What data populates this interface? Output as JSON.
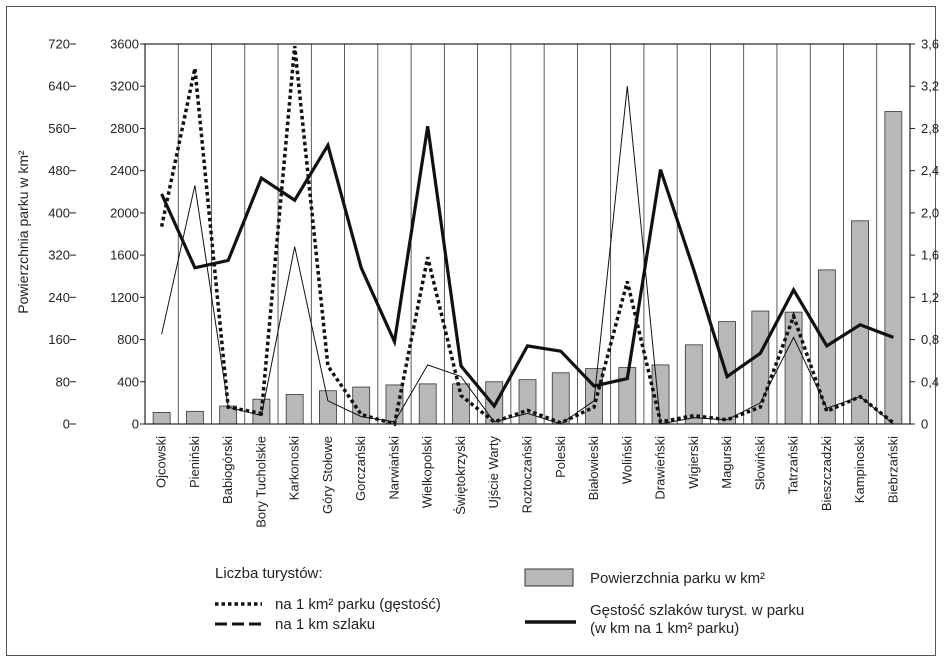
{
  "chart_data": {
    "type": "bar",
    "categories": [
      "Ojcowski",
      "Pieniński",
      "Babiogórski",
      "Bory Tucholskie",
      "Karkonoski",
      "Góry Stołowe",
      "Gorczański",
      "Narwiański",
      "Wielkopolski",
      "Świętokrzyski",
      "Ujście Warty",
      "Roztoczański",
      "Poleski",
      "Białowieski",
      "Woliński",
      "Drawieński",
      "Wigierski",
      "Magurski",
      "Słowiński",
      "Tatrzański",
      "Bieszczadzki",
      "Kampinoski",
      "Biebrzański"
    ],
    "ylabel": "Powierzchnia parku w km²",
    "y_left_outer_ticks": [
      "0",
      "80",
      "160",
      "240",
      "320",
      "400",
      "480",
      "560",
      "640",
      "720"
    ],
    "y_left_inner_ticks": [
      "0",
      "400",
      "800",
      "1200",
      "1600",
      "2000",
      "2400",
      "2800",
      "3200",
      "3600"
    ],
    "y_right_ticks": [
      "0",
      "0,4",
      "0,8",
      "1,2",
      "1,6",
      "2,0",
      "2,4",
      "2,8",
      "3,2",
      "3,6"
    ],
    "ylim_area": [
      0,
      720
    ],
    "ylim_tourists": [
      0,
      3600
    ],
    "ylim_density": [
      0,
      3.6
    ],
    "series": [
      {
        "name": "Powierzchnia parku w km²",
        "kind": "bar",
        "axis": "area",
        "values": [
          22,
          24,
          34,
          47,
          56,
          63,
          70,
          74,
          76,
          76,
          80,
          84,
          97,
          105,
          107,
          112,
          150,
          194,
          214,
          212,
          292,
          385,
          592
        ]
      },
      {
        "name": "na 1 km² parku (gęstość)",
        "kind": "line",
        "style": "dotted",
        "axis": "tourists",
        "values": [
          1870,
          3370,
          160,
          100,
          3580,
          550,
          90,
          0,
          1580,
          270,
          20,
          130,
          10,
          160,
          1350,
          20,
          80,
          40,
          160,
          1020,
          120,
          260,
          10
        ]
      },
      {
        "name": "na 1 km szlaku",
        "kind": "line",
        "style": "thin",
        "axis": "tourists",
        "values": [
          850,
          2260,
          160,
          80,
          1680,
          220,
          70,
          20,
          560,
          450,
          20,
          100,
          0,
          220,
          3200,
          0,
          60,
          40,
          200,
          820,
          150,
          260,
          0
        ]
      },
      {
        "name": "Gęstość szlaków turyst. w parku",
        "kind": "line",
        "style": "thick",
        "axis": "density",
        "values": [
          2.18,
          1.48,
          1.55,
          2.33,
          2.12,
          2.64,
          1.48,
          0.78,
          2.82,
          0.55,
          0.17,
          0.74,
          0.69,
          0.36,
          0.43,
          2.41,
          1.46,
          0.45,
          0.67,
          1.27,
          0.74,
          0.94,
          0.82
        ]
      }
    ],
    "grid": {
      "vertical": true,
      "horizontal": false
    },
    "legend_position": "bottom",
    "legend": {
      "title": "Liczba turystów:",
      "dotted": "na 1 km² parku (gęstość)",
      "dashed": "na 1 km szlaku",
      "bar": "Powierzchnia parku w km²",
      "thick1": "Gęstość szlaków turyst. w parku",
      "thick2": "(w km na 1 km² parku)"
    }
  }
}
